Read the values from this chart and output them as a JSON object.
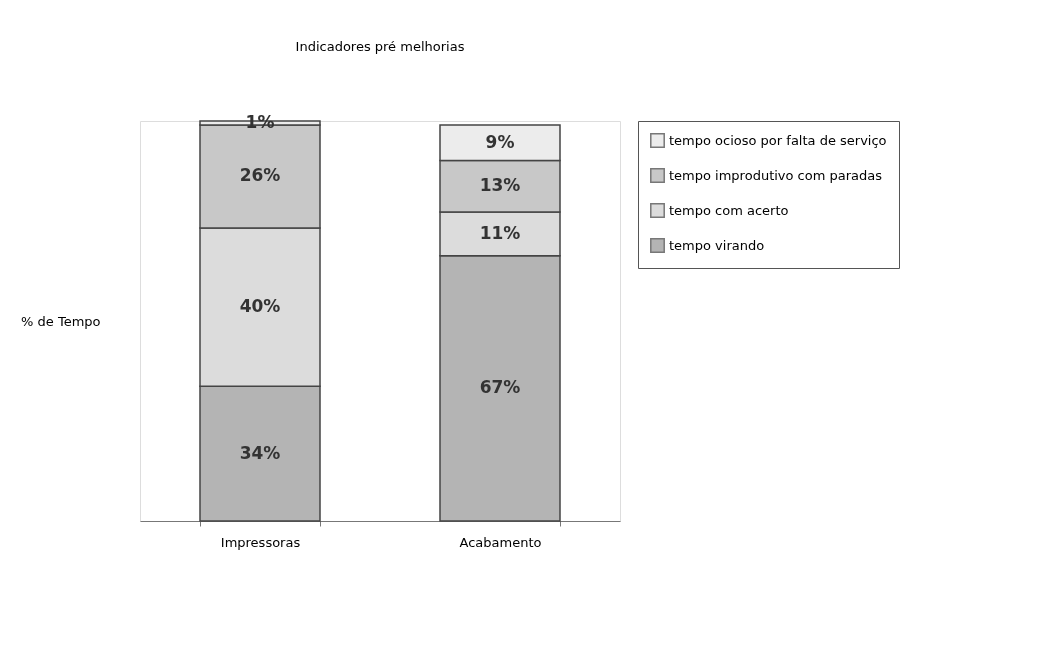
{
  "chart_data": {
    "type": "bar",
    "title": "Indicadores pré melhorias",
    "ylabel": "% de Tempo",
    "categories": [
      "Impressoras",
      "Acabamento"
    ],
    "stacked": true,
    "legend": "right",
    "tick_labels": "x",
    "grid": false,
    "series": [
      {
        "name": "tempo virando",
        "color": "#b4b4b4",
        "values": [
          34,
          67
        ],
        "value_labels": [
          "34%",
          "67%"
        ]
      },
      {
        "name": "tempo com acerto",
        "color": "#dcdcdc",
        "values": [
          40,
          11
        ],
        "value_labels": [
          "40%",
          "11%"
        ]
      },
      {
        "name": "tempo improdutivo com paradas",
        "color": "#c8c8c8",
        "values": [
          26,
          13
        ],
        "value_labels": [
          "26%",
          "13%"
        ]
      },
      {
        "name": "tempo ocioso por falta de serviço",
        "color": "#ececec",
        "values": [
          1,
          9
        ],
        "value_labels": [
          "1%",
          "9%"
        ]
      }
    ]
  }
}
